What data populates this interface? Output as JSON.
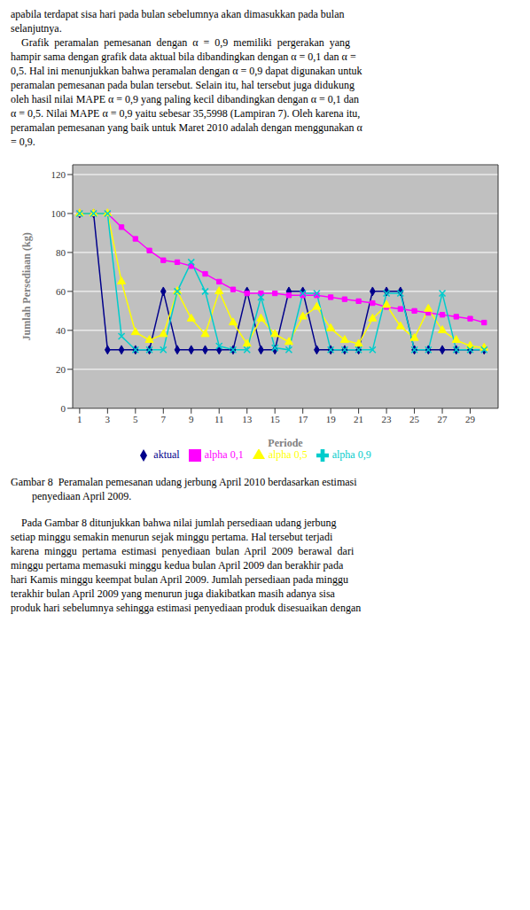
{
  "chart_data": {
    "type": "line",
    "title": [
      "Gambar 8  Peramalan pemesanan udang jerbung April 2010 berdasarkan estimasi",
      "        penyediaan April 2009."
    ],
    "xlabel": "Periode",
    "ylabel": "Jumlah Persediaan (kg)",
    "x": [
      1,
      2,
      3,
      4,
      5,
      6,
      7,
      8,
      9,
      10,
      11,
      12,
      13,
      14,
      15,
      16,
      17,
      18,
      19,
      20,
      21,
      22,
      23,
      24,
      25,
      26,
      27,
      28,
      29,
      30
    ],
    "series": [
      {
        "name": "aktual",
        "color": "#00008B",
        "marker": "diamond",
        "values": [
          100,
          100,
          30,
          30,
          30,
          30,
          60,
          30,
          30,
          30,
          30,
          30,
          60,
          30,
          30,
          60,
          60,
          30,
          30,
          30,
          30,
          60,
          60,
          60,
          30,
          30,
          30,
          30,
          30,
          30
        ]
      },
      {
        "name": "alpha 0,1",
        "color": "#FF00FF",
        "marker": "square",
        "values": [
          100,
          100,
          100,
          93,
          87,
          81,
          76,
          75,
          73,
          69,
          65,
          61,
          59,
          59,
          59,
          58,
          58,
          58,
          57,
          56,
          55,
          54,
          52,
          51,
          50,
          49,
          48,
          47,
          46,
          44
        ]
      },
      {
        "name": "alpha 0,5",
        "color": "#FFFF00",
        "marker": "triangle",
        "values": [
          100,
          100,
          100,
          65,
          39,
          35,
          38,
          60,
          46,
          38,
          60,
          44,
          33,
          46,
          38,
          34,
          47,
          52,
          41,
          35,
          33,
          46,
          53,
          42,
          36,
          51,
          40,
          35,
          32,
          31
        ]
      },
      {
        "name": "alpha 0,9",
        "color": "#00CCCC",
        "marker": "x",
        "values": [
          100,
          100,
          100,
          37,
          30,
          30,
          30,
          60,
          75,
          60,
          32,
          30,
          30,
          57,
          31,
          30,
          59,
          59,
          30,
          30,
          30,
          30,
          59,
          59,
          30,
          30,
          59,
          30,
          30,
          30
        ]
      }
    ],
    "xlim": [
      0.5,
      31
    ],
    "ylim": [
      0,
      125
    ],
    "xticks": [
      1,
      3,
      5,
      7,
      9,
      11,
      13,
      15,
      17,
      19,
      21,
      23,
      25,
      27,
      29
    ],
    "yticks": [
      0,
      20,
      40,
      60,
      80,
      100,
      120
    ],
    "grid": true,
    "legend": "bottom",
    "annotations": {
      "above": [
        "apabila terdapat sisa hari pada bulan sebelumnya akan dimasukkan pada bulan",
        "selanjutnya.",
        "    Grafik  peramalan  pemesanan  dengan  α  =  0,9  memiliki  pergerakan  yang",
        "hampir sama dengan grafik data aktual bila dibandingkan dengan α = 0,1 dan α =",
        "0,5. Hal ini menunjukkan bahwa peramalan dengan α = 0,9 dapat digunakan untuk",
        "peramalan pemesanan pada bulan tersebut. Selain itu, hal tersebut juga didukung",
        "oleh hasil nilai MAPE α = 0,9 yang paling kecil dibandingkan dengan α = 0,1 dan",
        "α = 0,5. Nilai MAPE α = 0,9 yaitu sebesar 35,5998 (Lampiran 7). Oleh karena itu,",
        "peramalan pemesanan yang baik untuk Maret 2010 adalah dengan menggunakan α",
        "= 0,9."
      ],
      "below": [
        "    Pada Gambar 8 ditunjukkan bahwa nilai jumlah persediaan udang jerbung",
        "setiap minggu semakin menurun sejak minggu pertama. Hal tersebut terjadi",
        "karena  minggu  pertama  estimasi  penyediaan  bulan  April  2009  berawal  dari",
        "minggu pertama memasuki minggu kedua bulan April 2009 dan berakhir pada",
        "hari Kamis minggu keempat bulan April 2009. Jumlah persediaan pada minggu",
        "terakhir bulan April 2009 yang menurun juga diakibatkan masih adanya sisa",
        "produk hari sebelumnya sehingga estimasi penyediaan produk disesuaikan dengan"
      ]
    }
  }
}
